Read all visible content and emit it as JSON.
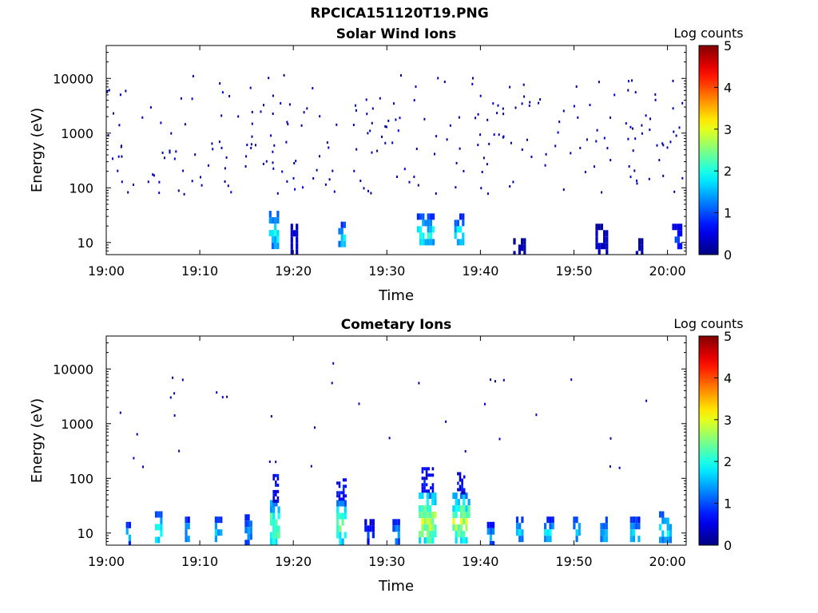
{
  "figure": {
    "title": "RPCICA151120T19.PNG"
  },
  "chart_data": [
    {
      "type": "heatmap",
      "title": "Solar Wind Ions",
      "xlabel": "Time",
      "ylabel": "Energy (eV)",
      "yscale": "log",
      "xlim": [
        "19:00",
        "20:02"
      ],
      "ylim": [
        6,
        40000
      ],
      "xticks": [
        "19:00",
        "19:10",
        "19:20",
        "19:30",
        "19:40",
        "19:50",
        "20:00"
      ],
      "yticks": [
        "10",
        "100",
        "1000",
        "10000"
      ],
      "colorbar": {
        "label": "Log counts",
        "range": [
          0,
          5
        ],
        "ticks": [
          "0",
          "1",
          "2",
          "3",
          "4",
          "5"
        ],
        "colormap": "jet"
      },
      "background_count_minute_range": [
        0,
        62
      ],
      "background_energy_range_eV": [
        80,
        12000
      ],
      "clusters": [
        {
          "t_start": 19.7,
          "t_end": 20.5,
          "e_min": 7,
          "e_max": 22,
          "peak_log": 0.6
        },
        {
          "t_start": 17.4,
          "t_end": 18.4,
          "e_min": 9,
          "e_max": 38,
          "peak_log": 2.1
        },
        {
          "t_start": 24.8,
          "t_end": 25.6,
          "e_min": 9,
          "e_max": 24,
          "peak_log": 2.0
        },
        {
          "t_start": 33.2,
          "t_end": 34.9,
          "e_min": 9,
          "e_max": 34,
          "peak_log": 2.1
        },
        {
          "t_start": 37.2,
          "t_end": 38.2,
          "e_min": 9,
          "e_max": 34,
          "peak_log": 2.0
        },
        {
          "t_start": 43.5,
          "t_end": 44.6,
          "e_min": 6,
          "e_max": 12,
          "peak_log": 0.3
        },
        {
          "t_start": 52.3,
          "t_end": 53.6,
          "e_min": 7,
          "e_max": 22,
          "peak_log": 0.4
        },
        {
          "t_start": 56.6,
          "t_end": 57.4,
          "e_min": 6,
          "e_max": 12,
          "peak_log": 0.3
        },
        {
          "t_start": 60.5,
          "t_end": 61.4,
          "e_min": 9,
          "e_max": 22,
          "peak_log": 1.0
        }
      ]
    },
    {
      "type": "heatmap",
      "title": "Cometary Ions",
      "xlabel": "Time",
      "ylabel": "Energy (eV)",
      "yscale": "log",
      "xlim": [
        "19:00",
        "20:02"
      ],
      "ylim": [
        6,
        40000
      ],
      "xticks": [
        "19:00",
        "19:10",
        "19:20",
        "19:30",
        "19:40",
        "19:50",
        "20:00"
      ],
      "yticks": [
        "10",
        "100",
        "1000",
        "10000"
      ],
      "colorbar": {
        "label": "Log counts",
        "range": [
          0,
          5
        ],
        "ticks": [
          "0",
          "1",
          "2",
          "3",
          "4",
          "5"
        ],
        "colormap": "jet"
      },
      "background_count_minute_range": [
        0,
        62
      ],
      "background_energy_range_eV": [
        150,
        16000
      ],
      "clusters": [
        {
          "t_start": 2.1,
          "t_end": 2.6,
          "e_min": 7,
          "e_max": 16,
          "peak_log": 1.7
        },
        {
          "t_start": 5.2,
          "t_end": 6.0,
          "e_min": 7,
          "e_max": 25,
          "peak_log": 2.3
        },
        {
          "t_start": 8.4,
          "t_end": 8.9,
          "e_min": 7,
          "e_max": 20,
          "peak_log": 1.7
        },
        {
          "t_start": 11.6,
          "t_end": 12.2,
          "e_min": 7,
          "e_max": 20,
          "peak_log": 1.8
        },
        {
          "t_start": 14.8,
          "t_end": 15.5,
          "e_min": 7,
          "e_max": 22,
          "peak_log": 1.6
        },
        {
          "t_start": 17.5,
          "t_end": 18.5,
          "e_min": 7,
          "e_max": 40,
          "peak_log": 2.8
        },
        {
          "t_start": 24.6,
          "t_end": 25.6,
          "e_min": 7,
          "e_max": 40,
          "peak_log": 2.6
        },
        {
          "t_start": 27.6,
          "t_end": 28.6,
          "e_min": 7,
          "e_max": 18,
          "peak_log": 1.0
        },
        {
          "t_start": 30.6,
          "t_end": 31.3,
          "e_min": 7,
          "e_max": 18,
          "peak_log": 1.6
        },
        {
          "t_start": 33.4,
          "t_end": 35.2,
          "e_min": 7,
          "e_max": 55,
          "peak_log": 3.2
        },
        {
          "t_start": 37.0,
          "t_end": 38.8,
          "e_min": 7,
          "e_max": 55,
          "peak_log": 3.0
        },
        {
          "t_start": 40.7,
          "t_end": 41.3,
          "e_min": 7,
          "e_max": 16,
          "peak_log": 1.7
        },
        {
          "t_start": 43.8,
          "t_end": 44.6,
          "e_min": 7,
          "e_max": 20,
          "peak_log": 1.9
        },
        {
          "t_start": 46.8,
          "t_end": 47.8,
          "e_min": 7,
          "e_max": 20,
          "peak_log": 1.8
        },
        {
          "t_start": 49.9,
          "t_end": 50.6,
          "e_min": 7,
          "e_max": 20,
          "peak_log": 1.9
        },
        {
          "t_start": 52.8,
          "t_end": 53.6,
          "e_min": 7,
          "e_max": 20,
          "peak_log": 1.8
        },
        {
          "t_start": 56.0,
          "t_end": 57.0,
          "e_min": 7,
          "e_max": 20,
          "peak_log": 1.8
        },
        {
          "t_start": 59.1,
          "t_end": 60.4,
          "e_min": 7,
          "e_max": 25,
          "peak_log": 2.1
        }
      ],
      "plumes": [
        {
          "t_start": 17.8,
          "t_end": 18.3,
          "e_min": 40,
          "e_max": 120
        },
        {
          "t_start": 24.6,
          "t_end": 25.5,
          "e_min": 40,
          "e_max": 100
        },
        {
          "t_start": 33.7,
          "t_end": 35.0,
          "e_min": 60,
          "e_max": 160
        },
        {
          "t_start": 37.5,
          "t_end": 38.2,
          "e_min": 55,
          "e_max": 130
        }
      ]
    }
  ]
}
